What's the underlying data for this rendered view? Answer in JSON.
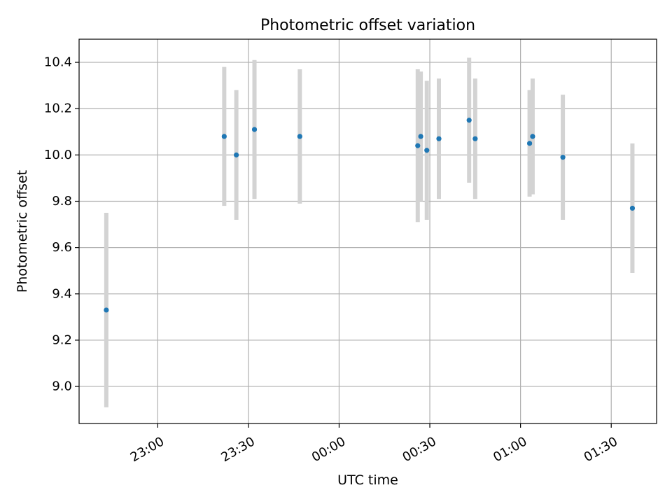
{
  "chart_data": {
    "type": "scatter",
    "title": "Photometric offset variation",
    "xlabel": "UTC time",
    "ylabel": "Photometric offset",
    "x_is_time": true,
    "xlim": [
      "22:34",
      "01:45"
    ],
    "ylim": [
      8.84,
      10.5
    ],
    "grid": true,
    "point_color": "#1f77b4",
    "errorbar_color": "#d3d3d3",
    "x_ticks": [
      "23:00",
      "23:30",
      "00:00",
      "00:30",
      "01:00",
      "01:30"
    ],
    "y_ticks": [
      "9.0",
      "9.2",
      "9.4",
      "9.6",
      "9.8",
      "10.0",
      "10.2",
      "10.4"
    ],
    "points": [
      {
        "x": "22:43",
        "y": 9.33,
        "yerr": 0.42
      },
      {
        "x": "23:22",
        "y": 10.08,
        "yerr": 0.3
      },
      {
        "x": "23:26",
        "y": 10.0,
        "yerr": 0.28
      },
      {
        "x": "23:32",
        "y": 10.11,
        "yerr": 0.3
      },
      {
        "x": "23:47",
        "y": 10.08,
        "yerr": 0.29
      },
      {
        "x": "00:26",
        "y": 10.04,
        "yerr": 0.33
      },
      {
        "x": "00:27",
        "y": 10.08,
        "yerr": 0.28
      },
      {
        "x": "00:29",
        "y": 10.02,
        "yerr": 0.3
      },
      {
        "x": "00:33",
        "y": 10.07,
        "yerr": 0.26
      },
      {
        "x": "00:43",
        "y": 10.15,
        "yerr": 0.27
      },
      {
        "x": "00:45",
        "y": 10.07,
        "yerr": 0.26
      },
      {
        "x": "01:03",
        "y": 10.05,
        "yerr": 0.23
      },
      {
        "x": "01:04",
        "y": 10.08,
        "yerr": 0.25
      },
      {
        "x": "01:14",
        "y": 9.99,
        "yerr": 0.27
      },
      {
        "x": "01:37",
        "y": 9.77,
        "yerr": 0.28
      }
    ]
  }
}
